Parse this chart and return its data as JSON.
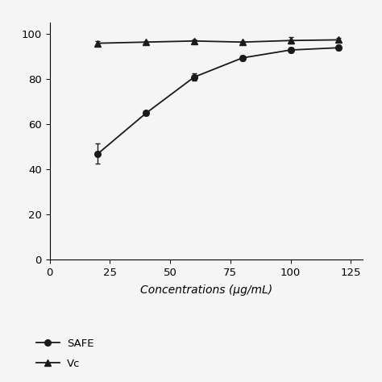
{
  "safe_x": [
    20,
    40,
    60,
    80,
    100,
    120
  ],
  "safe_y": [
    47,
    65,
    81,
    89.5,
    93,
    94
  ],
  "safe_yerr": [
    4.5,
    1.0,
    1.5,
    1.0,
    1.0,
    1.0
  ],
  "vc_x": [
    20,
    40,
    60,
    80,
    100,
    120
  ],
  "vc_y": [
    96,
    96.5,
    97,
    96.5,
    97.2,
    97.5
  ],
  "vc_yerr": [
    0.8,
    0.6,
    0.6,
    0.6,
    1.5,
    0.8
  ],
  "xlabel": "Concentrations (μg/mL)",
  "ylabel": "",
  "xlim": [
    0,
    130
  ],
  "ylim": [
    0,
    105
  ],
  "xticks": [
    0,
    25,
    50,
    75,
    100,
    125
  ],
  "yticks": [
    0,
    20,
    40,
    60,
    80,
    100
  ],
  "legend_safe": "SAFE",
  "legend_vc": "Vc",
  "line_color": "#1a1a1a",
  "background_color": "#f5f5f5"
}
